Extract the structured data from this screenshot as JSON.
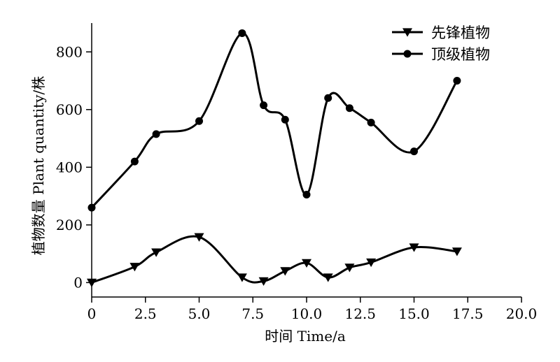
{
  "chart_data": {
    "type": "line",
    "title": "",
    "xlabel": "时间 Time/a",
    "ylabel": "植物数量 Plant quantity/株",
    "xlim": [
      0,
      20
    ],
    "ylim": [
      -50,
      900
    ],
    "x_ticks": [
      0,
      2.5,
      5,
      7.5,
      10,
      12.5,
      15,
      17.5,
      20
    ],
    "x_tick_labels": [
      "0",
      "2.5",
      "5.0",
      "7.5",
      "10.0",
      "12.5",
      "15.0",
      "17.5",
      "20.0"
    ],
    "y_ticks": [
      0,
      200,
      400,
      600,
      800
    ],
    "y_tick_labels": [
      "0",
      "200",
      "400",
      "600",
      "800"
    ],
    "grid": false,
    "legend_position": "top-right",
    "series": [
      {
        "name": "先锋植物",
        "marker": "triangle-down",
        "color": "#000000",
        "x": [
          0,
          2,
          3,
          5,
          7,
          8,
          9,
          10,
          11,
          12,
          13,
          15,
          17
        ],
        "y": [
          0,
          55,
          105,
          158,
          18,
          5,
          40,
          68,
          18,
          52,
          70,
          122,
          108
        ]
      },
      {
        "name": "顶级植物",
        "marker": "circle",
        "color": "#000000",
        "x": [
          0,
          2,
          3,
          5,
          7,
          8,
          9,
          10,
          11,
          12,
          13,
          15,
          17
        ],
        "y": [
          260,
          420,
          515,
          560,
          865,
          615,
          565,
          305,
          640,
          605,
          555,
          455,
          700
        ]
      }
    ]
  }
}
